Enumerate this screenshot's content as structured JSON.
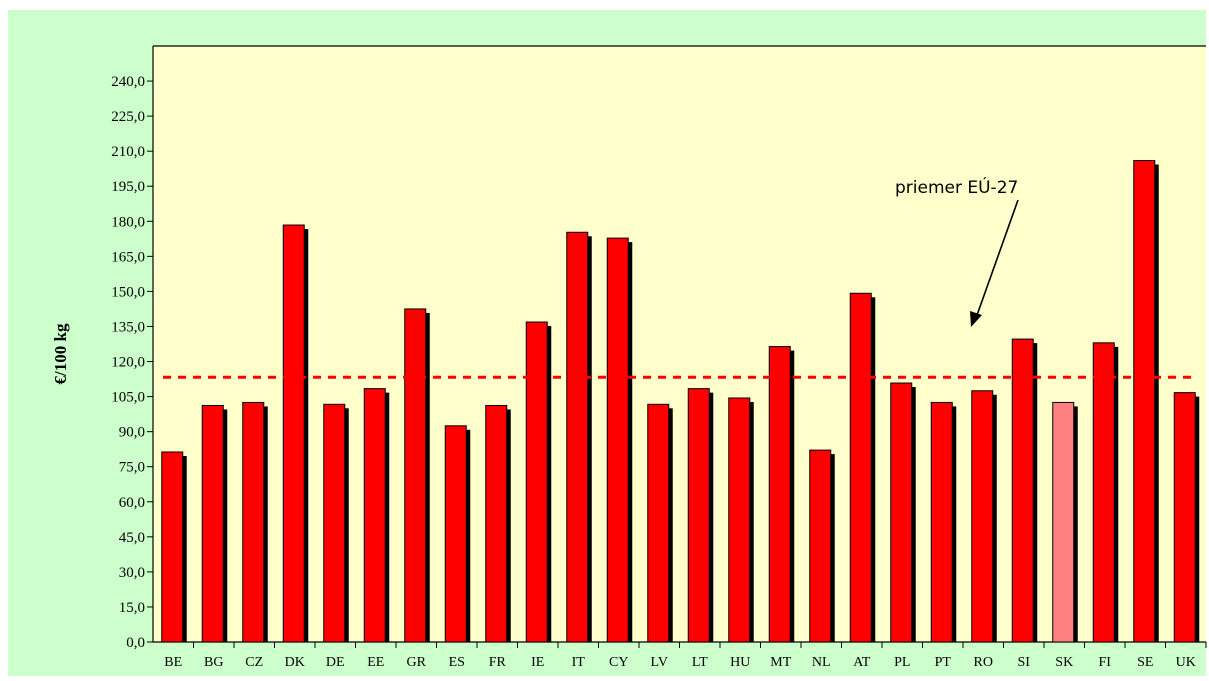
{
  "chart_data": {
    "type": "bar",
    "title": "",
    "xlabel": "",
    "ylabel": "€/100 kg",
    "categories": [
      "BE",
      "BG",
      "CZ",
      "DK",
      "DE",
      "EE",
      "GR",
      "ES",
      "FR",
      "IE",
      "IT",
      "CY",
      "LV",
      "LT",
      "HU",
      "MT",
      "NL",
      "AT",
      "PL",
      "PT",
      "RO",
      "SI",
      "SK",
      "FI",
      "SE",
      "UK"
    ],
    "series": [
      {
        "values": [
          81.3,
          101.2,
          102.5,
          178.4,
          101.7,
          108.4,
          142.5,
          92.5,
          101.2,
          136.9,
          175.3,
          172.8,
          101.7,
          108.4,
          104.4,
          126.4,
          82.1,
          149.2,
          110.8,
          102.5,
          107.5,
          129.6,
          102.5,
          128.0,
          206.0,
          106.7
        ]
      }
    ],
    "highlight_category": "SK",
    "ylim": [
      0,
      255
    ],
    "yticks": [
      "0,0",
      "15,0",
      "30,0",
      "45,0",
      "60,0",
      "75,0",
      "90,0",
      "105,0",
      "120,0",
      "135,0",
      "150,0",
      "165,0",
      "180,0",
      "195,0",
      "210,0",
      "225,0",
      "240,0"
    ],
    "reference_line": {
      "value": 113.3,
      "label": "priemer EÚ-27"
    },
    "grid": false,
    "legend": "none",
    "colors": {
      "bar": "#ff0000",
      "bar_highlight": "#ff8080",
      "bar_shadow": "#000000",
      "plot_background": "#ffffcc",
      "outer_background": "#ccffcc",
      "reference_line": "#ff0000"
    }
  }
}
